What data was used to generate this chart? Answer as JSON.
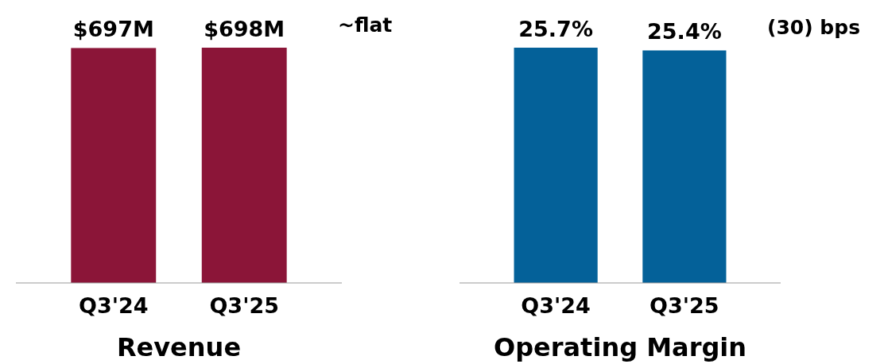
{
  "chart_data": [
    {
      "type": "bar",
      "title": "Revenue",
      "categories": [
        "Q3'24",
        "Q3'25"
      ],
      "values": [
        697,
        698
      ],
      "color": "#8b1538",
      "value_labels": [
        "$697M",
        "$698M"
      ],
      "annotations": [
        "~flat"
      ]
    },
    {
      "type": "bar",
      "title": "Operating Margin",
      "categories": [
        "Q3'24",
        "Q3'25"
      ],
      "values": [
        25.7,
        25.4
      ],
      "color": "#046199",
      "value_labels": [
        "25.7%",
        "25.4%"
      ],
      "annotations": [
        "(30) bps"
      ]
    }
  ]
}
